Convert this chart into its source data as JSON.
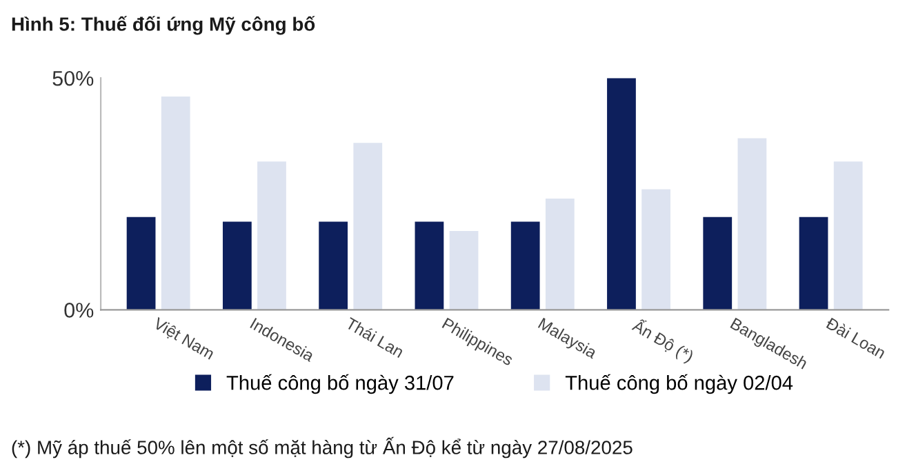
{
  "chart_data": {
    "type": "bar",
    "title": "Hình 5: Thuế đối ứng Mỹ công bố",
    "categories": [
      "Việt Nam",
      "Indonesia",
      "Thái Lan",
      "Philippines",
      "Malaysia",
      "Ấn Độ (*)",
      "Bangladesh",
      "Đài Loan"
    ],
    "series": [
      {
        "name": "Thuế công bố ngày 31/07",
        "color": "#0d1f5c",
        "values": [
          20,
          19,
          19,
          19,
          19,
          50,
          20,
          20
        ]
      },
      {
        "name": "Thuế công bố ngày 02/04",
        "color": "#dde3f0",
        "values": [
          46,
          32,
          36,
          17,
          24,
          26,
          37,
          32
        ]
      }
    ],
    "ylim": [
      0,
      50
    ],
    "yticks": [
      {
        "value": 0,
        "label": "0%"
      },
      {
        "value": 50,
        "label": "50%"
      }
    ],
    "grid": false,
    "legend": "bottom",
    "annotations": [
      "(*) Mỹ áp thuế 50% lên một số mặt hàng từ Ấn Độ kể từ ngày 27/08/2025"
    ]
  }
}
